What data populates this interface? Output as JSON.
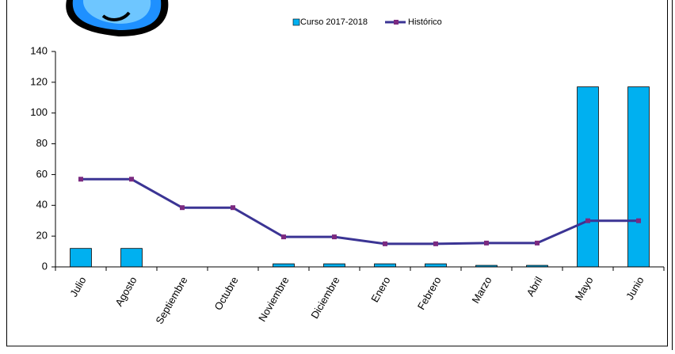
{
  "chart_data": {
    "type": "bar",
    "categories": [
      "Julio",
      "Agosto",
      "Septiembre",
      "Octubre",
      "Noviembre",
      "Diciembre",
      "Enero",
      "Febrero",
      "Marzo",
      "Abril",
      "Mayo",
      "Junio"
    ],
    "series": [
      {
        "name": "Curso 2017-2018",
        "type": "bar",
        "color": "#00b0f0",
        "values": [
          12,
          12,
          0,
          0,
          2,
          2,
          2,
          2,
          1,
          1,
          117,
          117
        ]
      },
      {
        "name": "Histórico",
        "type": "line",
        "color": "#3b3494",
        "values": [
          57,
          57,
          38.5,
          38.5,
          19.5,
          19.5,
          15,
          15,
          15.5,
          15.5,
          30,
          30
        ]
      }
    ],
    "ylim": [
      0,
      140
    ],
    "yticks": [
      0,
      20,
      40,
      60,
      80,
      100,
      120,
      140
    ],
    "grid": false,
    "legend": "top"
  }
}
